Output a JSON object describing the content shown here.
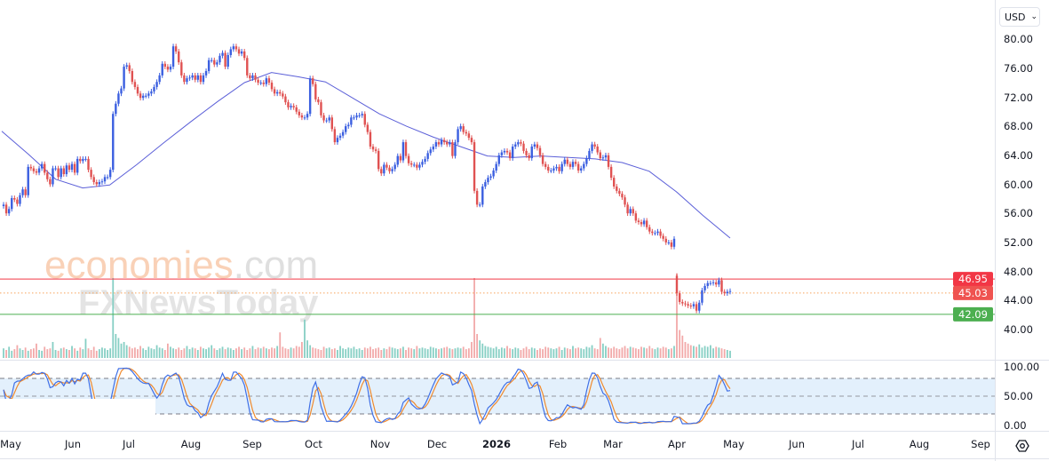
{
  "currency_selector": {
    "label": "USD",
    "icon": "chevron-down-icon"
  },
  "watermark": {
    "brand": "economies",
    "domain": ".com",
    "sub": "FXNewsToday"
  },
  "price_axis": {
    "ticks": [
      "80.00",
      "76.00",
      "72.00",
      "68.00",
      "64.00",
      "60.00",
      "56.00",
      "52.00",
      "48.00",
      "44.00",
      "40.00"
    ]
  },
  "stoch_axis": {
    "ticks": [
      "100.00",
      "50.00",
      "0.00"
    ]
  },
  "time_axis": {
    "labels": [
      "May",
      "Jun",
      "Jul",
      "Aug",
      "Sep",
      "Oct",
      "Nov",
      "Dec",
      "2026",
      "Feb",
      "Mar",
      "Apr",
      "May",
      "Jun",
      "Jul",
      "Aug",
      "Sep"
    ]
  },
  "levels": [
    {
      "value": 46.95,
      "label": "46.95",
      "color": "#f23645",
      "style": "solid"
    },
    {
      "value": 45.03,
      "label": "45.03",
      "color": "#ef5350",
      "line_color": "#f7a35c",
      "style": "dotted"
    },
    {
      "value": 42.09,
      "label": "42.09",
      "color": "#4caf50",
      "style": "solid"
    }
  ],
  "colors": {
    "up": "#3b5fe0",
    "down": "#e05252",
    "vol_up": "#86cfc4",
    "vol_down": "#f2a9a9",
    "ma": "#5b5fd8",
    "stoch_k": "#3f6fe6",
    "stoch_d": "#f08a2c",
    "stoch_band": "#e3f0fc"
  },
  "chart_data": {
    "type": "candlestick",
    "price_range": [
      38,
      82
    ],
    "first_open": 57.0,
    "closes": [
      57.2,
      56,
      56.6,
      58.1,
      57.9,
      57.3,
      58.5,
      59.3,
      58.5,
      62.4,
      62.2,
      61.8,
      61.6,
      62.2,
      62.8,
      61.6,
      60.7,
      60,
      62.2,
      62.2,
      61,
      62.2,
      61.4,
      62.6,
      62,
      62.8,
      61.6,
      63.5,
      63.2,
      63.5,
      63.5,
      62,
      61,
      60.3,
      60,
      60.3,
      60.4,
      61,
      61,
      62,
      69.7,
      71.1,
      72.5,
      73.2,
      76.2,
      76.4,
      75.6,
      74.1,
      73.4,
      72.5,
      71.9,
      72.2,
      72.2,
      72.5,
      72.8,
      73.4,
      74.1,
      75,
      76.6,
      76.2,
      75.8,
      76.2,
      79,
      78.3,
      76.8,
      75,
      74.1,
      74.6,
      74.7,
      75,
      74.4,
      75,
      74.1,
      75,
      75.6,
      77.1,
      77.1,
      76.5,
      76.8,
      77.7,
      78.1,
      76.2,
      77.8,
      78.6,
      79,
      78.6,
      78,
      78.3,
      77.4,
      75,
      74.6,
      75,
      74.4,
      74,
      74,
      73.8,
      74.6,
      74,
      73.1,
      72.5,
      72.7,
      72.5,
      72.1,
      71.3,
      70.6,
      70.8,
      70.6,
      70,
      69.5,
      69.2,
      69.2,
      69.7,
      74.6,
      73.8,
      71.7,
      71.3,
      69.5,
      68.8,
      68.8,
      69.2,
      67.6,
      65.8,
      66.4,
      66.7,
      67.2,
      68,
      68.2,
      69.2,
      69.2,
      69.5,
      69.5,
      69.7,
      68.2,
      67.2,
      65.2,
      64.8,
      64.6,
      62.1,
      61.5,
      62.7,
      62.3,
      61.8,
      62.1,
      62.7,
      63.9,
      63.3,
      65.8,
      63.9,
      62.9,
      62.7,
      62.7,
      62.3,
      62.7,
      63.1,
      63.5,
      64.3,
      64.8,
      65.2,
      65.8,
      65.5,
      66.1,
      65.8,
      65.5,
      65.8,
      63.9,
      65.8,
      67.6,
      68,
      67.2,
      67,
      66.4,
      65.8,
      59.1,
      57.2,
      57.2,
      59.7,
      60.3,
      60.9,
      61.1,
      61.9,
      62.8,
      64,
      64.4,
      64.6,
      64.4,
      63.6,
      65.2,
      65.5,
      65.8,
      65.6,
      64.6,
      64,
      63.6,
      65.2,
      65.5,
      65,
      64,
      62.8,
      62.4,
      61.9,
      61.9,
      62.2,
      62.4,
      61.8,
      62.8,
      63.4,
      62.8,
      62.4,
      63.1,
      62.8,
      61.9,
      62.2,
      62.8,
      63.6,
      64.6,
      65.5,
      65.2,
      64.4,
      63.6,
      63.7,
      64,
      62.4,
      60.9,
      59.7,
      59.1,
      58.7,
      58.2,
      57.2,
      56,
      56.6,
      56,
      55,
      54.8,
      54.5,
      55,
      54.1,
      53.5,
      53.3,
      53.3,
      53.5,
      52.9,
      52.5,
      52,
      52,
      51.4,
      52.5
    ],
    "second_segment_open": 47.4,
    "second_segment_closes": [
      45.0,
      43.8,
      43.6,
      43.5,
      43.3,
      43.2,
      43.5,
      42.6,
      43.7,
      45.4,
      46.0,
      46.4,
      46.4,
      46.5,
      46.2,
      46.8,
      45.2,
      45.0,
      45.2,
      45.3
    ],
    "volume": [
      12,
      10,
      14,
      9,
      11,
      16,
      12,
      10,
      13,
      9,
      11,
      12,
      18,
      10,
      9,
      14,
      11,
      12,
      20,
      10,
      9,
      12,
      13,
      11,
      10,
      15,
      12,
      9,
      13,
      11,
      24,
      12,
      10,
      14,
      9,
      11,
      13,
      12,
      10,
      12,
      100,
      30,
      25,
      18,
      20,
      16,
      14,
      12,
      13,
      11,
      15,
      12,
      10,
      14,
      12,
      11,
      16,
      13,
      12,
      10,
      18,
      14,
      12,
      11,
      13,
      10,
      12,
      15,
      11,
      13,
      12,
      10,
      14,
      12,
      11,
      13,
      16,
      12,
      10,
      12,
      14,
      11,
      13,
      12,
      10,
      12,
      14,
      11,
      13,
      10,
      12,
      15,
      11,
      13,
      12,
      14,
      12,
      11,
      13,
      12,
      15,
      32,
      14,
      12,
      11,
      13,
      12,
      15,
      14,
      20,
      48,
      22,
      16,
      13,
      12,
      11,
      10,
      14,
      12,
      13,
      11,
      12,
      10,
      15,
      12,
      11,
      13,
      12,
      14,
      11,
      12,
      10,
      13,
      12,
      14,
      11,
      12,
      13,
      10,
      12,
      11,
      14,
      13,
      12,
      11,
      12,
      14,
      10,
      13,
      12,
      11,
      15,
      12,
      13,
      12,
      11,
      14,
      13,
      12,
      11,
      12,
      13,
      14,
      12,
      11,
      12,
      13,
      12,
      14,
      11,
      12,
      20,
      100,
      30,
      22,
      18,
      15,
      14,
      13,
      12,
      14,
      11,
      13,
      12,
      15,
      12,
      11,
      13,
      12,
      10,
      12,
      14,
      11,
      13,
      12,
      10,
      12,
      11,
      14,
      13,
      12,
      11,
      12,
      14,
      10,
      13,
      12,
      11,
      15,
      12,
      13,
      12,
      11,
      14,
      13,
      16,
      12,
      11,
      25,
      18,
      15,
      13,
      12,
      14,
      12,
      11,
      13,
      15,
      12,
      14,
      13,
      12,
      11,
      14,
      13,
      12,
      15,
      12,
      11,
      13,
      12,
      14,
      13,
      11,
      12,
      15,
      105,
      35,
      28,
      20,
      18,
      16,
      15,
      14,
      17,
      13,
      15,
      14,
      16,
      12,
      14,
      13,
      12,
      11,
      10,
      9
    ],
    "moving_average": [
      67.3,
      64.1,
      60.7,
      59.5,
      59.9,
      62.7,
      65.7,
      68.6,
      71.4,
      74.0,
      75.4,
      74.8,
      74.1,
      71.9,
      69.7,
      68.0,
      66.5,
      65.2,
      63.9,
      63.7,
      63.9,
      63.7,
      63.5,
      63.0,
      61.8,
      59.0,
      55.7,
      52.6
    ],
    "stochastic": {
      "k_period": 14,
      "smooth": 3,
      "d_period": 3,
      "upper_band": 80,
      "lower_band": 20,
      "mid": 50,
      "range": [
        0,
        100
      ]
    }
  }
}
